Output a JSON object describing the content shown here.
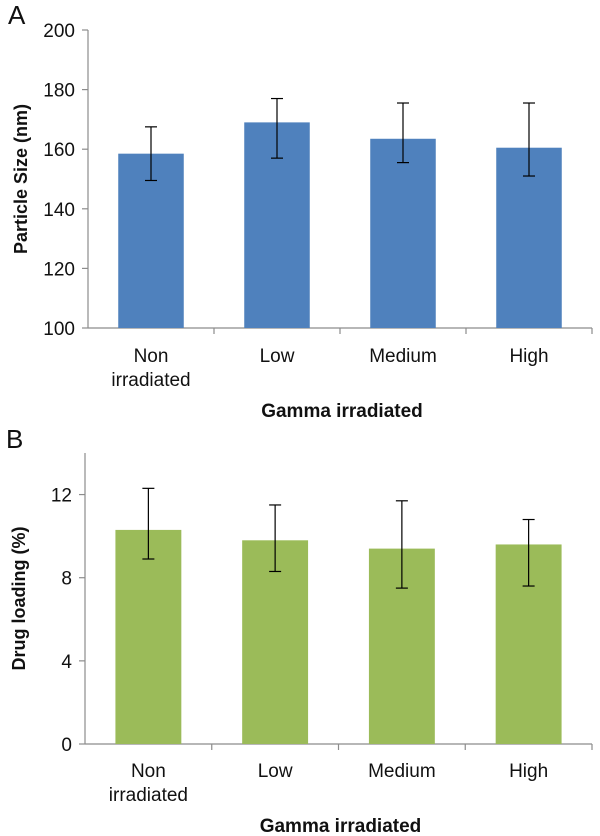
{
  "chart_data": [
    {
      "panel_label": "A",
      "type": "bar",
      "categories": [
        "Non irradiated",
        "Low",
        "Medium",
        "High"
      ],
      "category_lines": [
        [
          "Non",
          "irradiated"
        ],
        [
          "Low"
        ],
        [
          "Medium"
        ],
        [
          "High"
        ]
      ],
      "values": [
        158.5,
        169,
        163.5,
        160.5
      ],
      "error_low": [
        149.5,
        157,
        155.5,
        151
      ],
      "error_high": [
        167.5,
        177,
        175.5,
        175.5
      ],
      "ylim": [
        100,
        200
      ],
      "yticks": [
        100,
        120,
        140,
        160,
        180,
        200
      ],
      "xlabel": "Gamma irradiated",
      "ylabel": "Particle Size (nm)",
      "bar_color": "#4f81bd",
      "grid": false
    },
    {
      "panel_label": "B",
      "type": "bar",
      "categories": [
        "Non irradiated",
        "Low",
        "Medium",
        "High"
      ],
      "category_lines": [
        [
          "Non",
          "irradiated"
        ],
        [
          "Low"
        ],
        [
          "Medium"
        ],
        [
          "High"
        ]
      ],
      "values": [
        10.3,
        9.8,
        9.4,
        9.6
      ],
      "error_low": [
        8.9,
        8.3,
        7.5,
        7.6
      ],
      "error_high": [
        12.3,
        11.5,
        11.7,
        10.8
      ],
      "ylim": [
        0,
        14
      ],
      "yticks": [
        0,
        4,
        8,
        12
      ],
      "xlabel": "Gamma irradiated",
      "ylabel": "Drug loading (%)",
      "bar_color": "#9bbb59",
      "grid": false
    }
  ]
}
